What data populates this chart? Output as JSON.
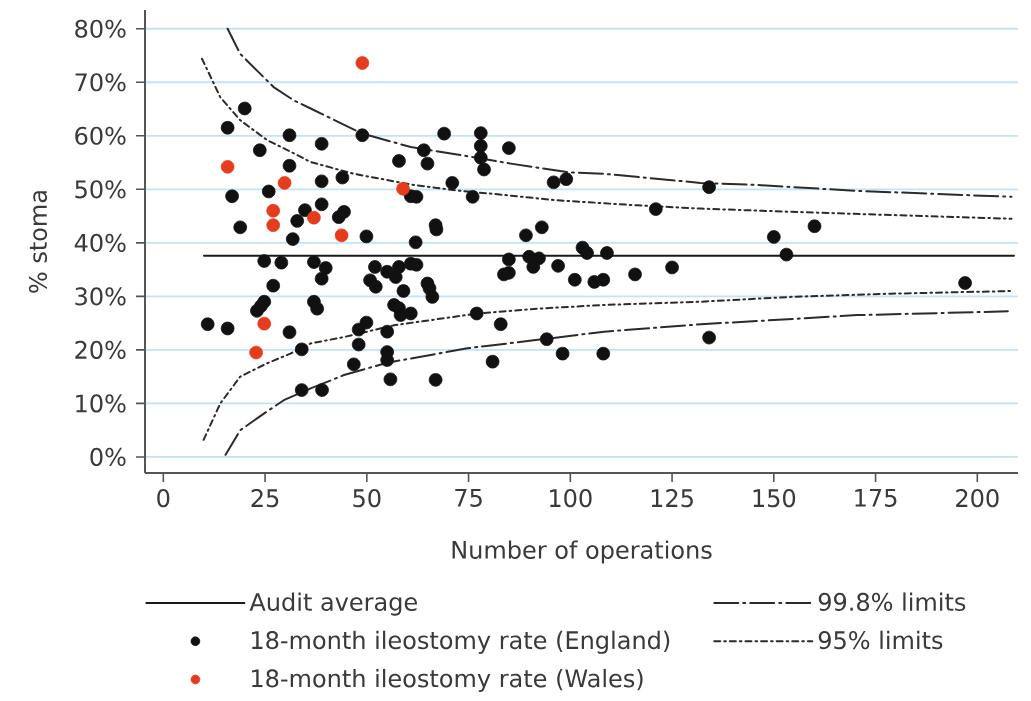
{
  "chart_data": {
    "type": "scatter",
    "xlabel": "Number of operations",
    "ylabel": "% stoma",
    "xlim": [
      -4.5,
      210
    ],
    "ylim": [
      -3,
      83.5
    ],
    "xticks": [
      0,
      25,
      50,
      75,
      100,
      125,
      150,
      175,
      200
    ],
    "yticks": [
      {
        "value": 0,
        "label": "0%"
      },
      {
        "value": 10,
        "label": "10%"
      },
      {
        "value": 20,
        "label": "20%"
      },
      {
        "value": 30,
        "label": "30%"
      },
      {
        "value": 40,
        "label": "40%"
      },
      {
        "value": 50,
        "label": "50%"
      },
      {
        "value": 60,
        "label": "60%"
      },
      {
        "value": 70,
        "label": "70%"
      },
      {
        "value": 80,
        "label": "80%"
      }
    ],
    "grid": "y",
    "legend": "bottom",
    "series": [
      {
        "name": "Audit average",
        "type": "line",
        "marker": "none",
        "color": "#1a1a1a",
        "line_style": "solid",
        "x": [
          10,
          209
        ],
        "values": [
          37.6,
          37.6
        ]
      },
      {
        "name": "18-month ileostomy rate (England)",
        "marker": "circle",
        "color": "#111111",
        "x": [
          20.0,
          15.8,
          31.0,
          23.7,
          31.0,
          38.9,
          38.9,
          25.9,
          16.9,
          38.9,
          34.8,
          32.9,
          18.9,
          31.8,
          24.8,
          29.0,
          37.0,
          39.9,
          38.9,
          27.0,
          24.8,
          24.0,
          23.0,
          37.0,
          37.8,
          10.9,
          15.8,
          31.0,
          34.0,
          34.0,
          39.0,
          48.9,
          69.0,
          64.0,
          64.9,
          57.9,
          44.0,
          71.0,
          60.8,
          62.2,
          76.0,
          43.1,
          44.4,
          49.9,
          66.9,
          67.1,
          62.0,
          52.0,
          55.0,
          57.1,
          57.9,
          60.8,
          62.2,
          50.8,
          52.2,
          59.0,
          64.9,
          65.4,
          66.1,
          56.7,
          57.9,
          58.3,
          60.8,
          49.9,
          48.0,
          55.0,
          48.0,
          55.0,
          55.0,
          46.8,
          55.8,
          66.9,
          77.0,
          78.0,
          78.0,
          78.0,
          78.8,
          84.9,
          95.9,
          99.0,
          121.0,
          89.1,
          93.0,
          103.0,
          104.1,
          109.0,
          84.9,
          89.9,
          92.3,
          90.9,
          97.0,
          83.7,
          84.9,
          101.1,
          105.9,
          108.1,
          115.9,
          125.0,
          82.9,
          94.2,
          80.9,
          98.1,
          108.1,
          134.1,
          150.0,
          160.0,
          153.1,
          197.0,
          134.1
        ],
        "values": [
          65.1,
          61.5,
          60.1,
          57.3,
          54.4,
          58.5,
          51.5,
          49.6,
          48.7,
          47.2,
          46.1,
          44.1,
          42.9,
          40.7,
          36.6,
          36.3,
          36.4,
          35.3,
          33.3,
          32.0,
          29.0,
          28.2,
          27.3,
          29.0,
          27.7,
          24.8,
          24.0,
          23.3,
          20.1,
          12.5,
          12.5,
          60.1,
          60.4,
          57.3,
          54.8,
          55.3,
          52.2,
          51.2,
          48.7,
          48.6,
          48.6,
          44.8,
          45.8,
          41.2,
          43.3,
          42.5,
          40.1,
          35.5,
          34.6,
          33.6,
          35.5,
          36.1,
          35.9,
          33.0,
          31.8,
          31.0,
          32.4,
          31.5,
          29.9,
          28.4,
          27.8,
          26.5,
          26.8,
          25.1,
          23.8,
          23.4,
          21.0,
          19.6,
          18.1,
          17.3,
          14.5,
          14.4,
          26.8,
          60.5,
          58.1,
          55.9,
          53.7,
          57.7,
          51.3,
          51.9,
          46.3,
          41.4,
          42.9,
          39.1,
          38.1,
          38.1,
          36.9,
          37.4,
          37.1,
          35.5,
          35.7,
          34.1,
          34.4,
          33.1,
          32.7,
          33.1,
          34.1,
          35.4,
          24.8,
          22.0,
          17.8,
          19.3,
          19.3,
          50.4,
          41.1,
          43.1,
          37.8,
          32.5,
          22.3
        ]
      },
      {
        "name": "18-month ileostomy rate (Wales)",
        "marker": "circle",
        "color": "#e63c1e",
        "x": [
          15.8,
          29.8,
          27.0,
          27.0,
          37.0,
          24.8,
          22.8,
          48.9,
          43.8,
          58.9
        ],
        "values": [
          54.2,
          51.2,
          46.0,
          43.3,
          44.7,
          24.9,
          19.5,
          73.6,
          41.4,
          50.1
        ]
      },
      {
        "name": "99.8% limits",
        "type": "line",
        "marker": "none",
        "color": "#2b2b2b",
        "line_style": "dashed",
        "x": [
          15.8,
          18.9,
          23.0,
          27.1,
          32.1,
          36.2,
          48.9,
          60.8,
          73.1,
          85.4,
          99.3,
          108.3,
          132.0,
          146.1,
          170.6,
          208.4
        ],
        "values": [
          80.0,
          75.3,
          72.2,
          69.1,
          66.6,
          65.1,
          60.4,
          57.9,
          56.4,
          54.8,
          53.2,
          52.9,
          51.2,
          50.8,
          49.7,
          48.6
        ]
      },
      {
        "name": "95% limits",
        "type": "line",
        "marker": "none",
        "color": "#2b2b2b",
        "line_style": "dotted",
        "x": [
          9.5,
          14.0,
          18.9,
          25.5,
          32.9,
          36.2,
          46.8,
          60.8,
          73.1,
          80.4,
          96.0,
          116.5,
          132.1,
          154.2,
          178.8,
          208.4
        ],
        "values": [
          74.4,
          67.2,
          62.9,
          59.2,
          56.4,
          55.1,
          52.9,
          50.9,
          49.7,
          49.2,
          48.0,
          47.0,
          46.4,
          45.8,
          45.2,
          44.5
        ]
      },
      {
        "type": "line",
        "marker": "none",
        "color": "#2b2b2b",
        "line_style": "dashed",
        "x": [
          15.3,
          18.9,
          24.7,
          29.6,
          36.2,
          44.4,
          55.0,
          74.7,
          94.4,
          108.3,
          132.1,
          146.1,
          170.6,
          207.5
        ],
        "values": [
          0.4,
          5.0,
          8.1,
          10.6,
          12.8,
          15.3,
          17.6,
          20.3,
          22.1,
          23.4,
          24.8,
          25.4,
          26.5,
          27.2
        ]
      },
      {
        "type": "line",
        "marker": "none",
        "color": "#2b2b2b",
        "line_style": "dotted",
        "x": [
          9.9,
          14.0,
          18.9,
          25.5,
          31.2,
          36.2,
          44.4,
          56.7,
          77.2,
          91.9,
          108.3,
          132.1,
          154.2,
          178.8,
          208.4
        ],
        "values": [
          3.2,
          10.0,
          15.0,
          17.5,
          19.3,
          21.2,
          22.4,
          24.6,
          26.8,
          27.7,
          28.4,
          29.0,
          29.9,
          30.5,
          31.0
        ]
      }
    ]
  }
}
